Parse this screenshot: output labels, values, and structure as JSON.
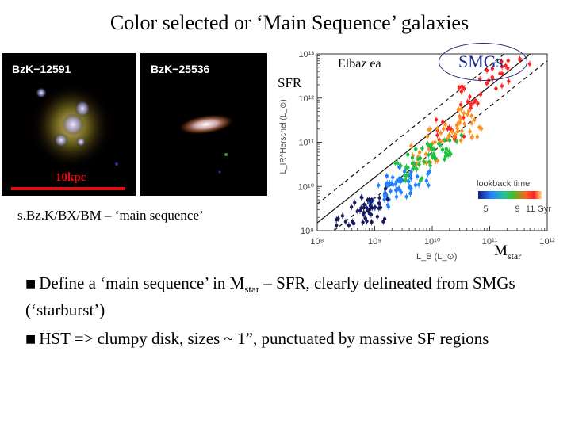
{
  "title": "Color selected or ‘Main Sequence’ galaxies",
  "panels": [
    {
      "label": "BzK−12591"
    },
    {
      "label": "BzK−25536"
    }
  ],
  "scale_label": "10kpc",
  "lower_label": "s.Bz.K/BX/BM – ‘main sequence’",
  "annotations": {
    "elbaz": "Elbaz ea",
    "sfr": "SFR",
    "smgs": "SMGs",
    "mstar_main": "M",
    "mstar_sub": "star"
  },
  "bullets": {
    "b1_part1": "Define a ‘main sequence’ in M",
    "b1_sub": "star",
    "b1_part2": " – SFR, clearly delineated from SMGs (‘starburst’)",
    "b2": "HST => clumpy disk, sizes ~ 1”, punctuated by massive SF regions"
  },
  "chart_data": {
    "type": "scatter",
    "xlabel": "L_B (L_⊙)",
    "ylabel": "L_IR^Herschel (L_⊙)",
    "x_scale": "log",
    "y_scale": "log",
    "xlim": [
      100000000,
      1000000000000
    ],
    "ylim": [
      1000000000,
      10000000000000
    ],
    "x_ticks": [
      "10⁸",
      "10⁹",
      "10¹⁰",
      "10¹¹",
      "10¹²"
    ],
    "y_ticks": [
      "10⁹",
      "10¹⁰",
      "10¹¹",
      "10¹²",
      "10¹³"
    ],
    "colorbar": {
      "title": "lookback time",
      "ticks": [
        "5",
        "9",
        "11 Gyr"
      ]
    },
    "lines": [
      "main-sequence fit (solid)",
      "upper scatter (dashed)",
      "lower scatter (dashed)"
    ],
    "series": [
      {
        "values": [
          [
            20000000000,
            200000000000
          ],
          [
            50000000000,
            1000000000000
          ],
          [
            120000000000,
            3000000000000
          ],
          [
            300000000000,
            8000000000000
          ]
        ]
      },
      {
        "values": [
          [
            8000000000,
            60000000000
          ],
          [
            15000000000,
            120000000000
          ],
          [
            30000000000,
            300000000000
          ],
          [
            40000000000,
            200000000000
          ]
        ]
      },
      {
        "values": [
          [
            4000000000,
            25000000000
          ],
          [
            6000000000,
            40000000000
          ],
          [
            10000000000,
            50000000000
          ],
          [
            18000000000,
            90000000000
          ]
        ]
      },
      {
        "values": [
          [
            1500000000,
            6000000000
          ],
          [
            2500000000,
            8000000000
          ],
          [
            3000000000,
            12000000000
          ],
          [
            5000000000,
            15000000000
          ]
        ]
      },
      {
        "values": [
          [
            300000000,
            1000000000
          ],
          [
            500000000,
            2000000000
          ],
          [
            800000000,
            3000000000
          ],
          [
            1000000000,
            5000000000
          ]
        ]
      }
    ]
  }
}
